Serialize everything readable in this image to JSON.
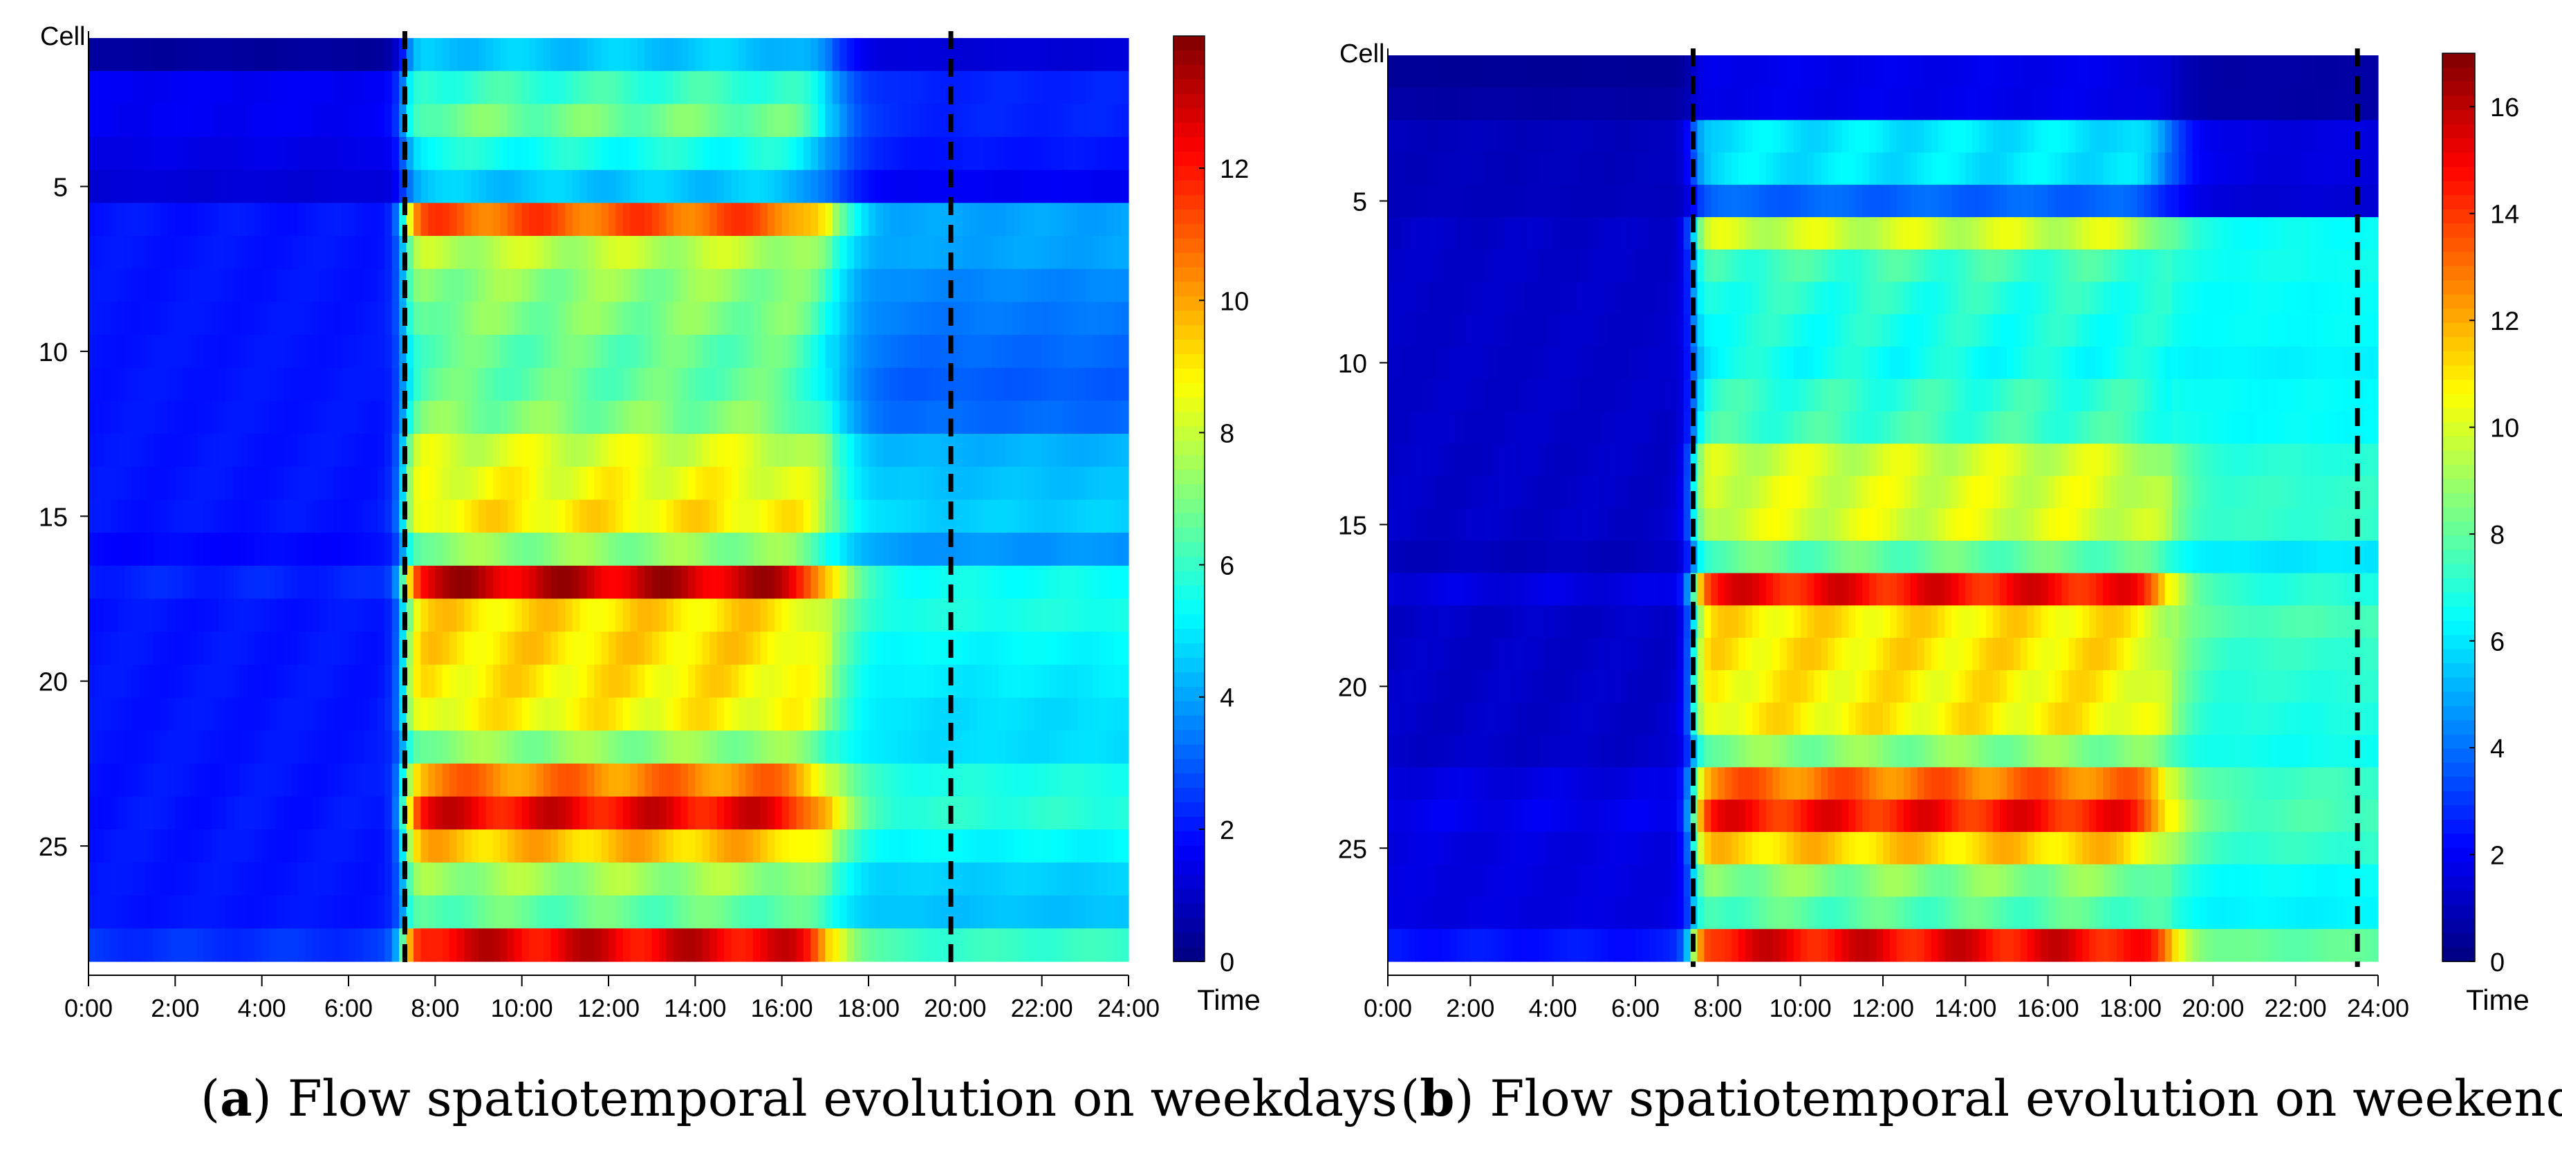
{
  "chart_data": [
    {
      "type": "heatmap",
      "panel": "a",
      "caption_letter": "a",
      "caption_text": "Flow spatiotemporal evolution on weekdays",
      "ylabel": "Cell",
      "xlabel": "Time",
      "x_ticks": [
        "0:00",
        "2:00",
        "4:00",
        "6:00",
        "8:00",
        "10:00",
        "12:00",
        "14:00",
        "16:00",
        "18:00",
        "20:00",
        "22:00",
        "24:00"
      ],
      "x_range_hours": [
        0,
        24
      ],
      "y_ticks": [
        5,
        10,
        15,
        20,
        25
      ],
      "y_range_cells": [
        1,
        28
      ],
      "colorbar": {
        "min": 0,
        "max": 14,
        "ticks": [
          0,
          2,
          4,
          6,
          8,
          10,
          12
        ]
      },
      "dashed_lines_hours": [
        7.3,
        19.9
      ],
      "colormap": "jet",
      "rows": [
        {
          "cell": 1,
          "night": 0.4,
          "day": 4.5,
          "evening": 1.2
        },
        {
          "cell": 2,
          "night": 1.6,
          "day": 6.0,
          "evening": 2.2
        },
        {
          "cell": 3,
          "night": 1.6,
          "day": 6.8,
          "evening": 2.2
        },
        {
          "cell": 4,
          "night": 1.4,
          "day": 5.5,
          "evening": 2.0
        },
        {
          "cell": 5,
          "night": 1.2,
          "day": 4.5,
          "evening": 1.6
        },
        {
          "cell": 6,
          "night": 2.0,
          "day": 11.0,
          "evening": 4.0
        },
        {
          "cell": 7,
          "night": 2.0,
          "day": 7.8,
          "evening": 4.0
        },
        {
          "cell": 8,
          "night": 2.0,
          "day": 7.2,
          "evening": 3.6
        },
        {
          "cell": 9,
          "night": 2.0,
          "day": 7.0,
          "evening": 3.4
        },
        {
          "cell": 10,
          "night": 2.0,
          "day": 6.6,
          "evening": 3.2
        },
        {
          "cell": 11,
          "night": 2.0,
          "day": 6.6,
          "evening": 3.0
        },
        {
          "cell": 12,
          "night": 2.0,
          "day": 7.0,
          "evening": 3.2
        },
        {
          "cell": 13,
          "night": 2.0,
          "day": 8.2,
          "evening": 4.2
        },
        {
          "cell": 14,
          "night": 2.0,
          "day": 8.6,
          "evening": 4.4
        },
        {
          "cell": 15,
          "night": 2.0,
          "day": 9.0,
          "evening": 4.6
        },
        {
          "cell": 16,
          "night": 1.8,
          "day": 7.2,
          "evening": 3.8
        },
        {
          "cell": 17,
          "night": 2.2,
          "day": 13.0,
          "evening": 5.4
        },
        {
          "cell": 18,
          "night": 2.0,
          "day": 9.2,
          "evening": 5.6
        },
        {
          "cell": 19,
          "night": 2.0,
          "day": 9.2,
          "evening": 5.2
        },
        {
          "cell": 20,
          "night": 2.0,
          "day": 9.0,
          "evening": 5.0
        },
        {
          "cell": 21,
          "night": 2.0,
          "day": 8.8,
          "evening": 4.8
        },
        {
          "cell": 22,
          "night": 2.0,
          "day": 7.2,
          "evening": 4.8
        },
        {
          "cell": 23,
          "night": 2.0,
          "day": 10.5,
          "evening": 5.6
        },
        {
          "cell": 24,
          "night": 2.0,
          "day": 12.4,
          "evening": 5.8
        },
        {
          "cell": 25,
          "night": 2.0,
          "day": 9.6,
          "evening": 5.2
        },
        {
          "cell": 26,
          "night": 2.0,
          "day": 7.4,
          "evening": 4.6
        },
        {
          "cell": 27,
          "night": 2.0,
          "day": 6.6,
          "evening": 4.4
        },
        {
          "cell": 28,
          "night": 2.4,
          "day": 12.6,
          "evening": 6.0
        }
      ],
      "transition_hours": {
        "rise": 7.3,
        "fall": 17.2
      }
    },
    {
      "type": "heatmap",
      "panel": "b",
      "caption_letter": "b",
      "caption_text": "Flow spatiotemporal evolution on weekends",
      "ylabel": "Cell",
      "xlabel": "Time",
      "x_ticks": [
        "0:00",
        "2:00",
        "4:00",
        "6:00",
        "8:00",
        "10:00",
        "12:00",
        "14:00",
        "16:00",
        "18:00",
        "20:00",
        "22:00",
        "24:00"
      ],
      "x_range_hours": [
        0,
        24
      ],
      "y_ticks": [
        5,
        10,
        15,
        20,
        25
      ],
      "y_range_cells": [
        1,
        28
      ],
      "colorbar": {
        "min": 0,
        "max": 17,
        "ticks": [
          0,
          2,
          4,
          6,
          8,
          10,
          12,
          14,
          16
        ]
      },
      "dashed_lines_hours": [
        7.4,
        23.5
      ],
      "colormap": "jet",
      "rows": [
        {
          "cell": 1,
          "night": 0.4,
          "day": 1.8,
          "evening": 0.6
        },
        {
          "cell": 2,
          "night": 0.6,
          "day": 1.8,
          "evening": 0.6
        },
        {
          "cell": 3,
          "night": 1.0,
          "day": 6.0,
          "evening": 1.6
        },
        {
          "cell": 4,
          "night": 1.0,
          "day": 6.0,
          "evening": 1.6
        },
        {
          "cell": 5,
          "night": 1.0,
          "day": 3.8,
          "evening": 1.4
        },
        {
          "cell": 6,
          "night": 1.2,
          "day": 9.8,
          "evening": 6.5
        },
        {
          "cell": 7,
          "night": 1.2,
          "day": 7.4,
          "evening": 6.6
        },
        {
          "cell": 8,
          "night": 1.2,
          "day": 7.0,
          "evening": 6.4
        },
        {
          "cell": 9,
          "night": 1.2,
          "day": 6.8,
          "evening": 6.4
        },
        {
          "cell": 10,
          "night": 1.2,
          "day": 6.6,
          "evening": 6.2
        },
        {
          "cell": 11,
          "night": 1.2,
          "day": 7.2,
          "evening": 6.4
        },
        {
          "cell": 12,
          "night": 1.2,
          "day": 7.4,
          "evening": 6.4
        },
        {
          "cell": 13,
          "night": 1.2,
          "day": 9.8,
          "evening": 7.0
        },
        {
          "cell": 14,
          "night": 1.2,
          "day": 10.0,
          "evening": 7.2
        },
        {
          "cell": 15,
          "night": 1.2,
          "day": 10.0,
          "evening": 7.2
        },
        {
          "cell": 16,
          "night": 1.0,
          "day": 8.0,
          "evening": 6.0
        },
        {
          "cell": 17,
          "night": 1.6,
          "day": 14.8,
          "evening": 7.0
        },
        {
          "cell": 18,
          "night": 1.2,
          "day": 11.0,
          "evening": 7.6
        },
        {
          "cell": 19,
          "night": 1.2,
          "day": 11.0,
          "evening": 7.2
        },
        {
          "cell": 20,
          "night": 1.2,
          "day": 10.8,
          "evening": 7.0
        },
        {
          "cell": 21,
          "night": 1.2,
          "day": 10.8,
          "evening": 6.8
        },
        {
          "cell": 22,
          "night": 1.2,
          "day": 8.6,
          "evening": 6.6
        },
        {
          "cell": 23,
          "night": 1.6,
          "day": 13.0,
          "evening": 7.4
        },
        {
          "cell": 24,
          "night": 1.8,
          "day": 14.6,
          "evening": 7.6
        },
        {
          "cell": 25,
          "night": 1.6,
          "day": 11.4,
          "evening": 7.2
        },
        {
          "cell": 26,
          "night": 1.6,
          "day": 8.6,
          "evening": 6.4
        },
        {
          "cell": 27,
          "night": 1.6,
          "day": 7.8,
          "evening": 6.2
        },
        {
          "cell": 28,
          "night": 2.4,
          "day": 15.0,
          "evening": 8.0
        }
      ],
      "transition_hours": {
        "rise": 7.4,
        "fall": 19.0
      }
    }
  ]
}
